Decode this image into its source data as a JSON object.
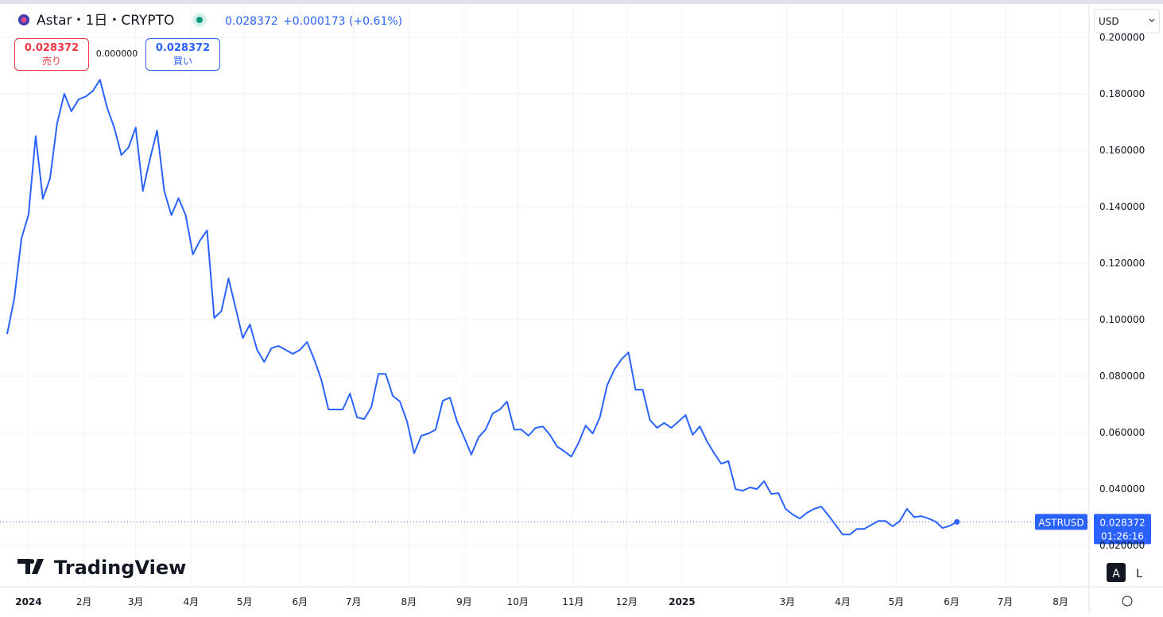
{
  "header": {
    "symbol": "Astar・1日・CRYPTO",
    "price": "0.028372",
    "change": "+0.000173 (+0.61%)",
    "sell_price": "0.028372",
    "sell_label": "売り",
    "spread": "0.000000",
    "buy_price": "0.028372",
    "buy_label": "買い",
    "currency": "USD",
    "brand": "TradingView",
    "auto_button": "A",
    "log_button": "L",
    "symbol_tag": "ASTRUSD",
    "countdown": "01:26:16"
  },
  "chart_data": {
    "type": "line",
    "color": "#2962ff",
    "grid": true,
    "x": [
      -12,
      -8,
      -4,
      0,
      4,
      8,
      12,
      16,
      20,
      24,
      28,
      32,
      36,
      40,
      44,
      48,
      52,
      56,
      60,
      64,
      68,
      72,
      76,
      80,
      84,
      88,
      92,
      96,
      100,
      104,
      108,
      112,
      116,
      120,
      124,
      128,
      132,
      136,
      140,
      144,
      148,
      152,
      156,
      160,
      164,
      168,
      172,
      176,
      180,
      184,
      188,
      192,
      196,
      200,
      204,
      208,
      212,
      216,
      220,
      224,
      228,
      232,
      236,
      240,
      244,
      248,
      252,
      256,
      260,
      264,
      268,
      272,
      276,
      280,
      284,
      288,
      292,
      296,
      300,
      304,
      308,
      312,
      316,
      320,
      324,
      328,
      332,
      336,
      340,
      344,
      348,
      352,
      356,
      360,
      364,
      368,
      372,
      376,
      380,
      384,
      388,
      392,
      396,
      400,
      404,
      408,
      412,
      416,
      420,
      424,
      428,
      432,
      436,
      440,
      444,
      448,
      452,
      456,
      460,
      464,
      468,
      472,
      476,
      480,
      484,
      488,
      492,
      496,
      500,
      504,
      508,
      512,
      516,
      520
    ],
    "values": [
      0.0949,
      0.1076,
      0.1287,
      0.1372,
      0.165,
      0.1428,
      0.15,
      0.1696,
      0.18,
      0.1738,
      0.178,
      0.179,
      0.181,
      0.185,
      0.175,
      0.168,
      0.1583,
      0.161,
      0.168,
      0.1456,
      0.157,
      0.167,
      0.1456,
      0.137,
      0.143,
      0.137,
      0.1231,
      0.128,
      0.1316,
      0.1006,
      0.103,
      0.1146,
      0.104,
      0.0935,
      0.0983,
      0.0893,
      0.085,
      0.0899,
      0.0907,
      0.0893,
      0.0879,
      0.0893,
      0.0921,
      0.0859,
      0.0786,
      0.0682,
      0.0682,
      0.0682,
      0.0738,
      0.0654,
      0.0648,
      0.069,
      0.0808,
      0.0808,
      0.073,
      0.071,
      0.0639,
      0.0527,
      0.0589,
      0.0597,
      0.0611,
      0.0713,
      0.0724,
      0.0639,
      0.0583,
      0.0522,
      0.0583,
      0.0611,
      0.0668,
      0.0682,
      0.071,
      0.0611,
      0.0611,
      0.0589,
      0.0617,
      0.0622,
      0.0592,
      0.0551,
      0.0534,
      0.0515,
      0.0563,
      0.0625,
      0.0597,
      0.0654,
      0.0766,
      0.0822,
      0.0859,
      0.0884,
      0.0752,
      0.0752,
      0.0645,
      0.0617,
      0.0634,
      0.0617,
      0.0639,
      0.0662,
      0.0592,
      0.0622,
      0.0569,
      0.0527,
      0.049,
      0.0499,
      0.04,
      0.0394,
      0.0406,
      0.04,
      0.0428,
      0.0383,
      0.0386,
      0.033,
      0.031,
      0.0296,
      0.0316,
      0.033,
      0.0338,
      0.0307,
      0.0273,
      0.0239,
      0.0239,
      0.0259,
      0.0259,
      0.0273,
      0.0287,
      0.0287,
      0.0268,
      0.0287,
      0.033,
      0.0301,
      0.0304,
      0.0296,
      0.0285,
      0.0262,
      0.027,
      0.0284
    ],
    "last_price": 0.028372,
    "xlim": [
      -16,
      594
    ],
    "ylim": [
      0.0054,
      0.2118
    ],
    "xticks": [
      {
        "value": 0,
        "label": "2024"
      },
      {
        "value": 31,
        "label": "2月"
      },
      {
        "value": 60,
        "label": "3月"
      },
      {
        "value": 91,
        "label": "4月"
      },
      {
        "value": 121,
        "label": "5月"
      },
      {
        "value": 152,
        "label": "6月"
      },
      {
        "value": 182,
        "label": "7月"
      },
      {
        "value": 213,
        "label": "8月"
      },
      {
        "value": 244,
        "label": "9月"
      },
      {
        "value": 274,
        "label": "10月"
      },
      {
        "value": 305,
        "label": "11月"
      },
      {
        "value": 335,
        "label": "12月"
      },
      {
        "value": 366,
        "label": "2025"
      },
      {
        "value": 425,
        "label": "3月"
      },
      {
        "value": 456,
        "label": "4月"
      },
      {
        "value": 486,
        "label": "5月"
      },
      {
        "value": 517,
        "label": "6月"
      },
      {
        "value": 547,
        "label": "7月"
      },
      {
        "value": 578,
        "label": "8月"
      }
    ],
    "yticks": [
      {
        "value": 0.02,
        "label": "0.020000"
      },
      {
        "value": 0.04,
        "label": "0.040000"
      },
      {
        "value": 0.06,
        "label": "0.060000"
      },
      {
        "value": 0.08,
        "label": "0.080000"
      },
      {
        "value": 0.1,
        "label": "0.100000"
      },
      {
        "value": 0.12,
        "label": "0.120000"
      },
      {
        "value": 0.14,
        "label": "0.140000"
      },
      {
        "value": 0.16,
        "label": "0.160000"
      },
      {
        "value": 0.18,
        "label": "0.180000"
      },
      {
        "value": 0.2,
        "label": "0.200000"
      }
    ]
  }
}
